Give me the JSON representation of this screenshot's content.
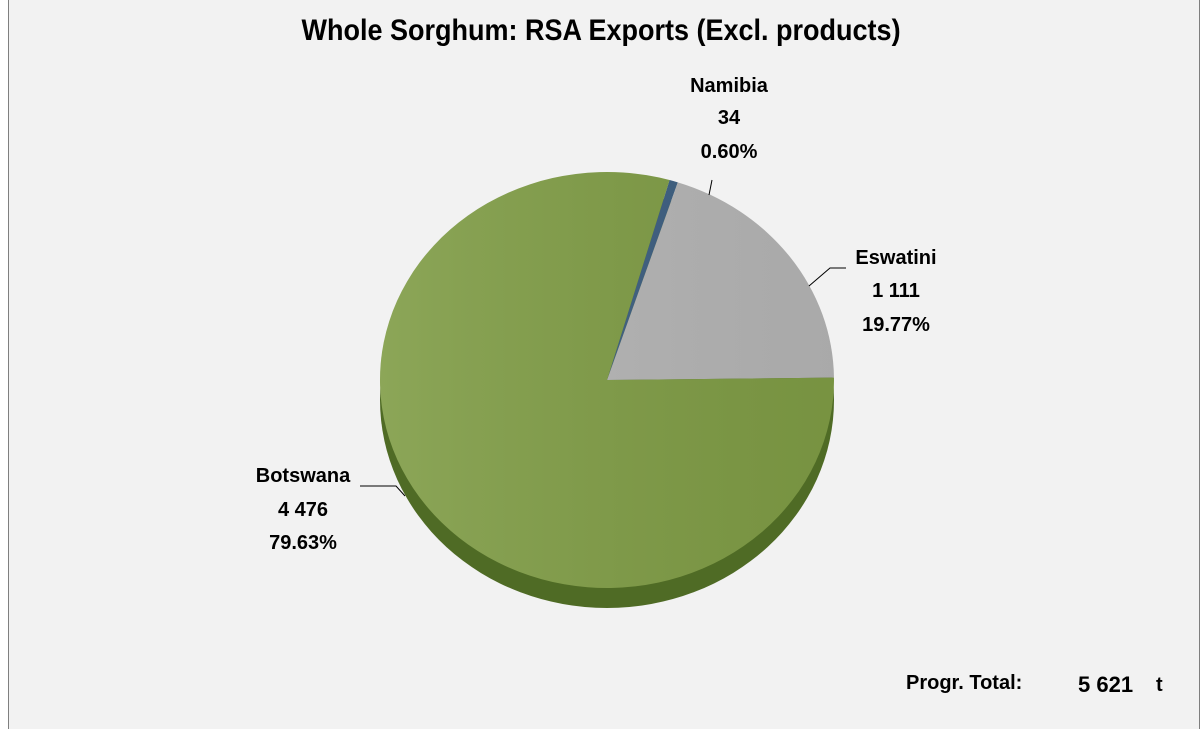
{
  "chart_data": {
    "type": "pie",
    "title": "Whole Sorghum: RSA Exports (Excl. products)",
    "slices": [
      {
        "label": "Namibia",
        "value": 34,
        "value_text": "34",
        "percent_text": "0.60%",
        "color": "#3c5e80"
      },
      {
        "label": "Eswatini",
        "value": 1111,
        "value_text": "1 111",
        "percent_text": "19.77%",
        "color": "#b4b4b4"
      },
      {
        "label": "Botswana",
        "value": 4476,
        "value_text": "4 476",
        "percent_text": "79.63%",
        "color": "#7f9c45"
      }
    ],
    "side_color": "#4f6b25"
  },
  "total": {
    "label": "Progr. Total:",
    "value": "5 621",
    "unit": "t"
  }
}
